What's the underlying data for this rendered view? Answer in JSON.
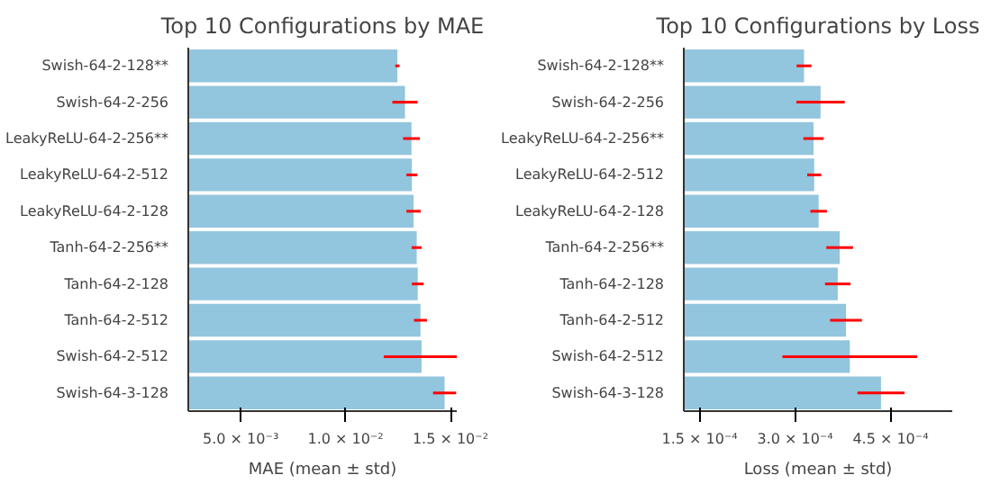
{
  "chart_data": [
    {
      "type": "bar",
      "orientation": "horizontal",
      "title": "Top 10 Configurations by MAE",
      "xlabel": "MAE (mean ± std)",
      "categories": [
        "Swish-64-2-128**",
        "Swish-64-2-256",
        "LeakyReLU-64-2-256**",
        "LeakyReLU-64-2-512",
        "LeakyReLU-64-2-128",
        "Tanh-64-2-256**",
        "Tanh-64-2-128",
        "Tanh-64-2-512",
        "Swish-64-2-512",
        "Swish-64-3-128"
      ],
      "values": [
        0.01247,
        0.01283,
        0.01314,
        0.01316,
        0.01324,
        0.01339,
        0.01344,
        0.01357,
        0.01362,
        0.01472
      ],
      "errors": [
        0.0001,
        0.0006,
        0.0004,
        0.00026,
        0.00034,
        0.00024,
        0.00028,
        0.00031,
        0.0018,
        0.00055
      ],
      "color": "#92c5de",
      "xlim": [
        0.0025,
        0.0153
      ],
      "xticks": [
        {
          "value": 0.005,
          "label": "5.0 × 10⁻³"
        },
        {
          "value": 0.01,
          "label": "1.0 × 10⁻²"
        },
        {
          "value": 0.015,
          "label": "1.5 × 10⁻²"
        }
      ],
      "grid": false
    },
    {
      "type": "bar",
      "orientation": "horizontal",
      "title": "Top 10 Configurations by Loss",
      "xlabel": "Loss (mean ± std)",
      "categories": [
        "Swish-64-2-128**",
        "Swish-64-2-256",
        "LeakyReLU-64-2-256**",
        "LeakyReLU-64-2-512",
        "LeakyReLU-64-2-128",
        "Tanh-64-2-256**",
        "Tanh-64-2-128",
        "Tanh-64-2-512",
        "Swish-64-2-512",
        "Swish-64-3-128"
      ],
      "values": [
        0.000314,
        0.00034,
        0.000329,
        0.00033,
        0.000337,
        0.00037,
        0.000367,
        0.00038,
        0.000386,
        0.000435
      ],
      "errors": [
        1.17e-05,
        3.8e-05,
        1.6e-05,
        1.1e-05,
        1.3e-05,
        2.1e-05,
        2e-05,
        2.5e-05,
        0.000106,
        3.7e-05
      ],
      "color": "#92c5de",
      "xlim": [
        0.000125,
        0.000547
      ],
      "xticks": [
        {
          "value": 0.00015,
          "label": "1.5 × 10⁻⁴"
        },
        {
          "value": 0.0003,
          "label": "3.0 × 10⁻⁴"
        },
        {
          "value": 0.00045,
          "label": "4.5 × 10⁻⁴"
        }
      ],
      "grid": false
    }
  ]
}
